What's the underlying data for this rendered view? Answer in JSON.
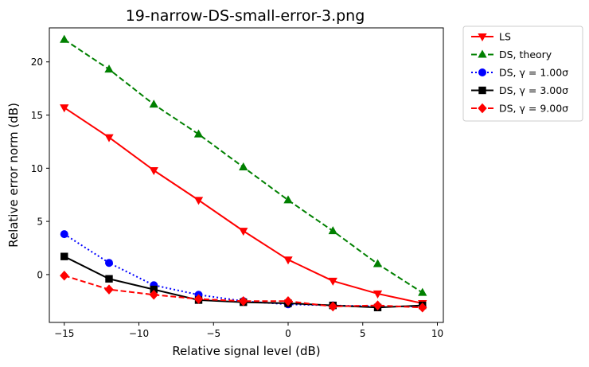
{
  "chart_data": {
    "type": "line",
    "title": "19-narrow-DS-small-error-3.png",
    "xlabel": "Relative signal level (dB)",
    "ylabel": "Relative error norm (dB)",
    "xlim": [
      -16,
      10.4
    ],
    "ylim": [
      -4.5,
      23.2
    ],
    "xticks": [
      -15,
      -10,
      -5,
      0,
      5,
      10
    ],
    "xtick_labels": [
      "−15",
      "−10",
      "−5",
      "0",
      "5",
      "10"
    ],
    "yticks": [
      0,
      5,
      10,
      15,
      20
    ],
    "ytick_labels": [
      "0",
      "5",
      "10",
      "15",
      "20"
    ],
    "grid": false,
    "legend_position": "outside-top-right",
    "x": [
      -15,
      -12,
      -9,
      -6,
      -3,
      0,
      3,
      6,
      9
    ],
    "series": [
      {
        "name": "LS",
        "legend_label": "LS",
        "color": "#ff0000",
        "line_style": "solid",
        "marker": "triangle-down",
        "values": [
          15.7,
          12.9,
          9.8,
          7.0,
          4.1,
          1.4,
          -0.6,
          -1.8,
          -2.7
        ]
      },
      {
        "name": "DS, theory",
        "legend_label": "DS, theory",
        "color": "#008000",
        "line_style": "dashed",
        "marker": "triangle-up",
        "values": [
          22.1,
          19.3,
          16.0,
          13.2,
          10.1,
          7.0,
          4.1,
          1.0,
          -1.7
        ]
      },
      {
        "name": "DS, γ = 1.00σ",
        "legend_label": "DS, γ = 1.00σ",
        "color": "#0000ff",
        "line_style": "dotted",
        "marker": "circle",
        "values": [
          3.8,
          1.1,
          -1.0,
          -1.9,
          -2.5,
          -2.8,
          -2.9,
          -3.0,
          -3.0
        ]
      },
      {
        "name": "DS, γ = 3.00σ",
        "legend_label": "DS, γ = 3.00σ",
        "color": "#000000",
        "line_style": "solid",
        "marker": "square",
        "values": [
          1.7,
          -0.4,
          -1.4,
          -2.4,
          -2.6,
          -2.7,
          -2.9,
          -3.1,
          -2.9
        ]
      },
      {
        "name": "DS, γ = 9.00σ",
        "legend_label": "DS, γ = 9.00σ",
        "color": "#ff0000",
        "line_style": "dashed",
        "marker": "diamond",
        "values": [
          -0.1,
          -1.4,
          -1.9,
          -2.3,
          -2.5,
          -2.5,
          -3.0,
          -2.9,
          -3.1
        ]
      }
    ]
  }
}
